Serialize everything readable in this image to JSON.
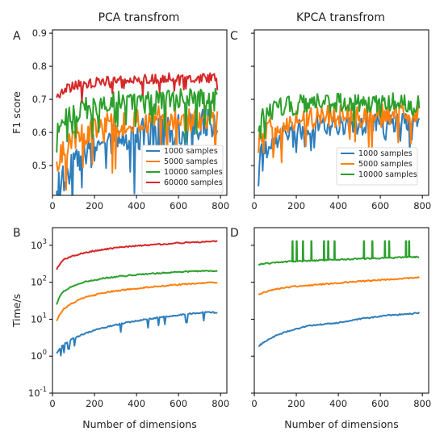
{
  "column_titles": [
    "PCA transfrom",
    "KPCA transfrom"
  ],
  "colors": {
    "1000 samples": "#2e7ebc",
    "5000 samples": "#ff7f0e",
    "10000 samples": "#2ca02c",
    "60000 samples": "#d62728"
  },
  "chart_data": [
    {
      "panel": "A",
      "type": "line",
      "title": "PCA transfrom",
      "xlabel": "",
      "ylabel": "F1 score",
      "xlim": [
        0,
        830
      ],
      "ylim": [
        0.41,
        0.91
      ],
      "xticks": [
        0,
        200,
        400,
        600,
        800
      ],
      "yticks": [
        0.5,
        0.6,
        0.7,
        0.8,
        0.9
      ],
      "ytick_labels": [
        "0.5",
        "0.6",
        "0.7",
        "0.8",
        "0.9"
      ],
      "legend": "lower-right",
      "series": [
        {
          "name": "1000 samples",
          "x": [
            20,
            50,
            100,
            150,
            200,
            250,
            300,
            350,
            400,
            450,
            500,
            550,
            600,
            650,
            700,
            750,
            785
          ],
          "y": [
            0.41,
            0.47,
            0.5,
            0.53,
            0.55,
            0.57,
            0.58,
            0.58,
            0.59,
            0.6,
            0.6,
            0.61,
            0.61,
            0.61,
            0.62,
            0.62,
            0.62
          ],
          "noise": 0.05
        },
        {
          "name": "5000 samples",
          "x": [
            20,
            50,
            100,
            150,
            200,
            250,
            300,
            350,
            400,
            450,
            500,
            550,
            600,
            650,
            700,
            750,
            785
          ],
          "y": [
            0.5,
            0.55,
            0.59,
            0.6,
            0.61,
            0.62,
            0.62,
            0.63,
            0.63,
            0.63,
            0.64,
            0.64,
            0.64,
            0.64,
            0.64,
            0.65,
            0.65
          ],
          "noise": 0.04
        },
        {
          "name": "10000 samples",
          "x": [
            20,
            50,
            100,
            150,
            200,
            250,
            300,
            350,
            400,
            450,
            500,
            550,
            600,
            650,
            700,
            750,
            785
          ],
          "y": [
            0.6,
            0.64,
            0.66,
            0.67,
            0.68,
            0.68,
            0.69,
            0.69,
            0.69,
            0.69,
            0.7,
            0.7,
            0.7,
            0.7,
            0.7,
            0.7,
            0.7
          ],
          "noise": 0.035
        },
        {
          "name": "60000 samples",
          "x": [
            20,
            50,
            100,
            150,
            200,
            250,
            300,
            350,
            400,
            450,
            500,
            550,
            600,
            650,
            700,
            750,
            785
          ],
          "y": [
            0.7,
            0.73,
            0.74,
            0.745,
            0.75,
            0.755,
            0.76,
            0.76,
            0.76,
            0.76,
            0.76,
            0.765,
            0.765,
            0.765,
            0.765,
            0.765,
            0.765
          ],
          "noise": 0.015
        }
      ]
    },
    {
      "panel": "C",
      "type": "line",
      "title": "KPCA transfrom",
      "xlabel": "",
      "ylabel": "",
      "xlim": [
        0,
        830
      ],
      "ylim": [
        0.41,
        0.91
      ],
      "xticks": [
        0,
        200,
        400,
        600,
        800
      ],
      "yticks": [
        0.5,
        0.6,
        0.7,
        0.8,
        0.9
      ],
      "ytick_labels": [],
      "legend": "lower-right",
      "series": [
        {
          "name": "1000 samples",
          "x": [
            20,
            50,
            100,
            150,
            200,
            250,
            300,
            350,
            400,
            450,
            500,
            550,
            600,
            650,
            700,
            750,
            785
          ],
          "y": [
            0.53,
            0.56,
            0.58,
            0.6,
            0.61,
            0.61,
            0.62,
            0.62,
            0.62,
            0.62,
            0.62,
            0.62,
            0.63,
            0.63,
            0.63,
            0.63,
            0.63
          ],
          "noise": 0.03
        },
        {
          "name": "5000 samples",
          "x": [
            20,
            50,
            100,
            150,
            200,
            250,
            300,
            350,
            400,
            450,
            500,
            550,
            600,
            650,
            700,
            750,
            785
          ],
          "y": [
            0.57,
            0.6,
            0.62,
            0.63,
            0.64,
            0.64,
            0.64,
            0.65,
            0.65,
            0.65,
            0.65,
            0.65,
            0.65,
            0.65,
            0.66,
            0.66,
            0.66
          ],
          "noise": 0.035
        },
        {
          "name": "10000 samples",
          "x": [
            20,
            50,
            100,
            150,
            200,
            250,
            300,
            350,
            400,
            450,
            500,
            550,
            600,
            650,
            700,
            750,
            785
          ],
          "y": [
            0.63,
            0.66,
            0.67,
            0.68,
            0.68,
            0.69,
            0.69,
            0.69,
            0.69,
            0.69,
            0.69,
            0.69,
            0.69,
            0.69,
            0.69,
            0.68,
            0.68
          ],
          "noise": 0.03
        }
      ]
    },
    {
      "panel": "B",
      "type": "line",
      "yscale": "log",
      "xlabel": "Number of dimensions",
      "ylabel": "Time/s",
      "xlim": [
        0,
        830
      ],
      "ylim": [
        0.1,
        3000
      ],
      "xticks": [
        0,
        200,
        400,
        600,
        800
      ],
      "yticks": [
        0.1,
        1,
        10,
        100,
        1000
      ],
      "ytick_labels": [
        "10^-1",
        "10^0",
        "10^1",
        "10^2",
        "10^3"
      ],
      "legend": "none",
      "series": [
        {
          "name": "1000 samples",
          "x": [
            20,
            50,
            100,
            150,
            200,
            250,
            300,
            350,
            400,
            450,
            500,
            550,
            600,
            650,
            700,
            750,
            785
          ],
          "y": [
            1.2,
            2.0,
            3.0,
            4.0,
            5.0,
            6.0,
            7.0,
            8.0,
            9.0,
            10.0,
            11.0,
            12.0,
            13.0,
            14.0,
            15.0,
            15.5,
            15.0
          ]
        },
        {
          "name": "5000 samples",
          "x": [
            20,
            50,
            100,
            150,
            200,
            250,
            300,
            350,
            400,
            450,
            500,
            550,
            600,
            650,
            700,
            750,
            785
          ],
          "y": [
            9,
            18,
            28,
            38,
            45,
            52,
            58,
            63,
            68,
            73,
            78,
            82,
            86,
            90,
            94,
            97,
            98
          ]
        },
        {
          "name": "10000 samples",
          "x": [
            20,
            50,
            100,
            150,
            200,
            250,
            300,
            350,
            400,
            450,
            500,
            550,
            600,
            650,
            700,
            750,
            785
          ],
          "y": [
            25,
            55,
            80,
            100,
            115,
            130,
            140,
            150,
            160,
            168,
            175,
            183,
            190,
            196,
            200,
            203,
            205
          ]
        },
        {
          "name": "60000 samples",
          "x": [
            20,
            50,
            100,
            150,
            200,
            250,
            300,
            350,
            400,
            450,
            500,
            550,
            600,
            650,
            700,
            750,
            785
          ],
          "y": [
            220,
            400,
            520,
            620,
            700,
            780,
            850,
            910,
            960,
            1010,
            1060,
            1100,
            1150,
            1190,
            1230,
            1270,
            1300
          ]
        }
      ]
    },
    {
      "panel": "D",
      "type": "line",
      "yscale": "log",
      "xlabel": "Number of dimensions",
      "ylabel": "",
      "xlim": [
        0,
        830
      ],
      "ylim": [
        0.1,
        3000
      ],
      "xticks": [
        0,
        200,
        400,
        600,
        800
      ],
      "yticks": [
        0.1,
        1,
        10,
        100,
        1000
      ],
      "ytick_labels": [],
      "legend": "none",
      "series": [
        {
          "name": "1000 samples",
          "x": [
            20,
            50,
            100,
            150,
            200,
            250,
            300,
            350,
            400,
            450,
            500,
            550,
            600,
            650,
            700,
            750,
            785
          ],
          "y": [
            1.8,
            2.5,
            3.5,
            4.5,
            5.5,
            6.5,
            7.0,
            7.5,
            8.0,
            9.0,
            10.0,
            11.0,
            12.0,
            13.0,
            13.5,
            14.0,
            15.0
          ]
        },
        {
          "name": "5000 samples",
          "x": [
            20,
            50,
            100,
            150,
            200,
            250,
            300,
            350,
            400,
            450,
            500,
            550,
            600,
            650,
            700,
            750,
            785
          ],
          "y": [
            45,
            55,
            65,
            72,
            78,
            82,
            86,
            90,
            95,
            100,
            105,
            110,
            115,
            120,
            125,
            130,
            140
          ]
        },
        {
          "name": "10000 samples",
          "x": [
            20,
            50,
            100,
            150,
            200,
            250,
            300,
            350,
            400,
            450,
            500,
            550,
            600,
            650,
            700,
            750,
            785
          ],
          "y": [
            300,
            320,
            340,
            360,
            370,
            380,
            390,
            400,
            410,
            420,
            430,
            440,
            450,
            460,
            470,
            480,
            490
          ],
          "spikes_x": [
            180,
            200,
            230,
            270,
            330,
            350,
            380,
            520,
            560,
            620,
            640,
            720,
            735
          ]
        }
      ]
    }
  ]
}
